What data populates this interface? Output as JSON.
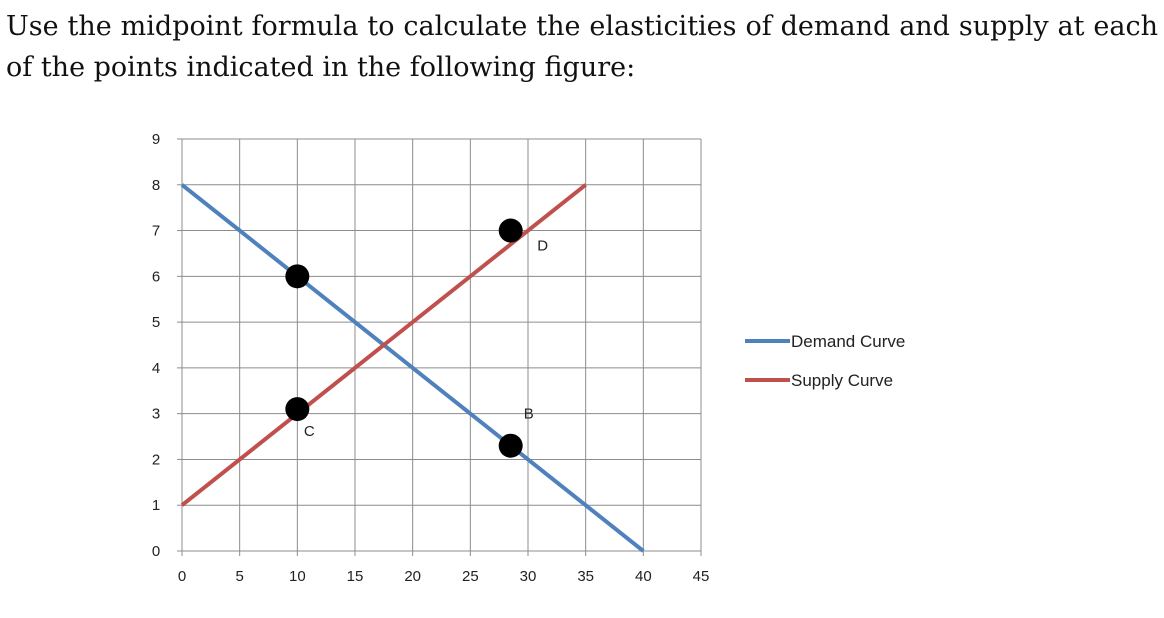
{
  "question": {
    "text": "Use the midpoint formula to calculate the elasticities of demand and supply at each of the points indicated in the following figure:"
  },
  "chart_data": {
    "type": "line",
    "title": "",
    "xlabel": "",
    "ylabel": "",
    "xlim": [
      0,
      45
    ],
    "ylim": [
      0,
      9
    ],
    "x_ticks": [
      0,
      5,
      10,
      15,
      20,
      25,
      30,
      35,
      40,
      45
    ],
    "y_ticks": [
      0,
      1,
      2,
      3,
      4,
      5,
      6,
      7,
      8,
      9
    ],
    "grid": true,
    "legend_position": "right",
    "series": [
      {
        "name": "Demand Curve",
        "color": "#4f81bd",
        "x": [
          0,
          40
        ],
        "y": [
          8,
          0
        ]
      },
      {
        "name": "Supply Curve",
        "color": "#c0504d",
        "x": [
          0,
          35
        ],
        "y": [
          1,
          8
        ]
      }
    ],
    "points": [
      {
        "label": "",
        "x": 10,
        "y": 6
      },
      {
        "label": "C",
        "x": 10,
        "y": 3.1
      },
      {
        "label": "D",
        "x": 28.5,
        "y": 7
      },
      {
        "label": "B",
        "x": 28.5,
        "y": 2.3
      }
    ],
    "point_color": "#000000"
  }
}
